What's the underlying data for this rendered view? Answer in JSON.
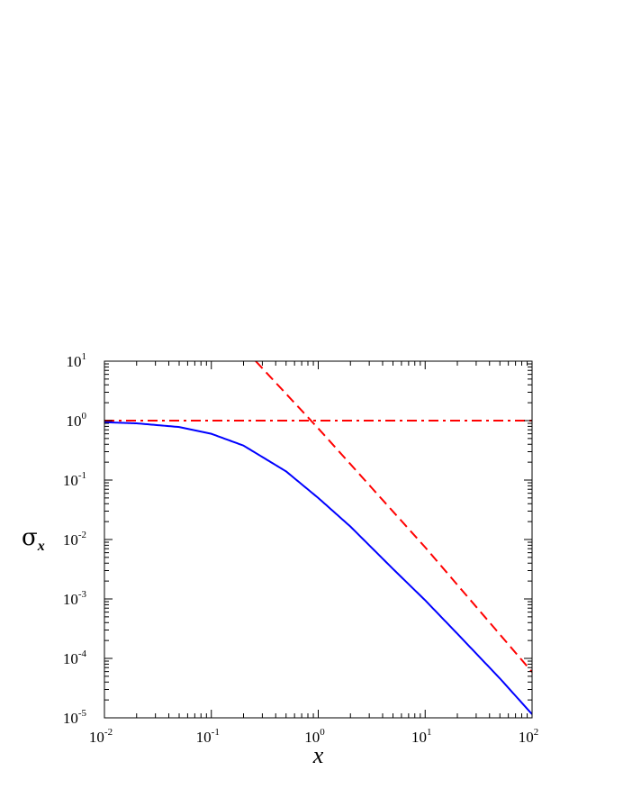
{
  "chart_data": {
    "type": "line",
    "xlabel": "x",
    "ylabel": {
      "symbol": "σ",
      "subscript": "x"
    },
    "xscale": "log",
    "yscale": "log",
    "xlim": [
      0.01,
      100
    ],
    "ylim": [
      1e-05,
      10
    ],
    "grid": false,
    "legend": "none",
    "x_ticks": [
      {
        "base": "10",
        "exp": "-2",
        "value": 0.01
      },
      {
        "base": "10",
        "exp": "-1",
        "value": 0.1
      },
      {
        "base": "10",
        "exp": "0",
        "value": 1
      },
      {
        "base": "10",
        "exp": "1",
        "value": 10
      },
      {
        "base": "10",
        "exp": "2",
        "value": 100
      }
    ],
    "y_ticks": [
      {
        "base": "10",
        "exp": "-5",
        "value": 1e-05
      },
      {
        "base": "10",
        "exp": "-4",
        "value": 0.0001
      },
      {
        "base": "10",
        "exp": "-3",
        "value": 0.001
      },
      {
        "base": "10",
        "exp": "-2",
        "value": 0.01
      },
      {
        "base": "10",
        "exp": "-1",
        "value": 0.1
      },
      {
        "base": "10",
        "exp": "0",
        "value": 1
      },
      {
        "base": "10",
        "exp": "1",
        "value": 10
      }
    ],
    "series": [
      {
        "color": "#0000ff",
        "style": "solid",
        "x": [
          0.01,
          0.02,
          0.05,
          0.1,
          0.2,
          0.5,
          1,
          2,
          5,
          10,
          20,
          50,
          100
        ],
        "y": [
          0.94,
          0.9,
          0.78,
          0.6,
          0.38,
          0.14,
          0.05,
          0.0165,
          0.0032,
          0.00095,
          0.00026,
          4.6e-05,
          1.15e-05
        ]
      },
      {
        "color": "#ff0000",
        "style": "dashed",
        "x": [
          0.26,
          1,
          10,
          100
        ],
        "y": [
          10,
          0.74,
          0.0074,
          5.9e-05
        ]
      },
      {
        "color": "#ff0000",
        "style": "dash-dot",
        "x": [
          0.01,
          100
        ],
        "y": [
          1,
          1
        ]
      }
    ]
  }
}
